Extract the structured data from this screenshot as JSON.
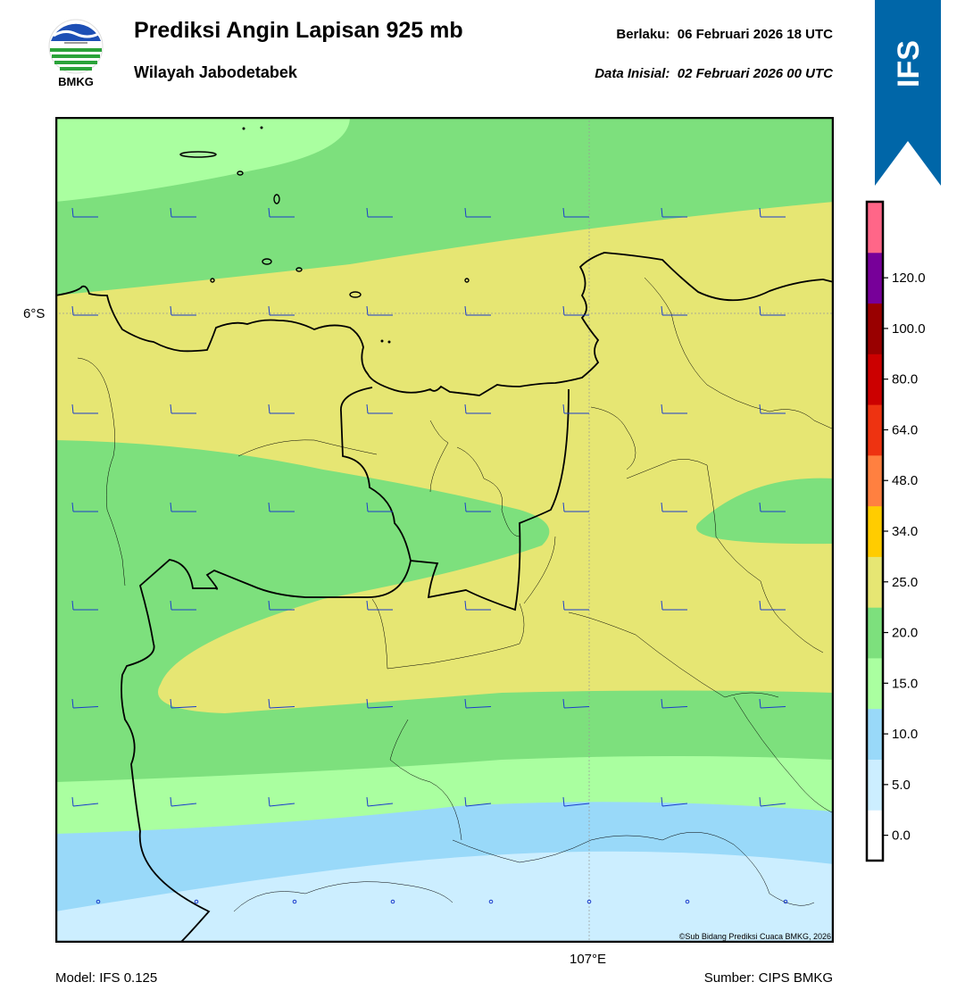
{
  "header": {
    "title": "Prediksi Angin Lapisan 925 mb",
    "subtitle": "Wilayah Jabodetabek",
    "valid_label": "Berlaku:",
    "valid_time": "06 Februari 2026 18 UTC",
    "init_label": "Data Inisial:",
    "init_time": "02 Februari 2026 00 UTC"
  },
  "logo": {
    "text": "BMKG",
    "icon": "bmkg-logo"
  },
  "ribbon": {
    "text": "IFS",
    "color": "#0066a8"
  },
  "map": {
    "lat_label": "6°S",
    "lon_label": "107°E",
    "copyright": "©Sub Bidang Prediksi Cuaca BMKG, 2026",
    "band_colors": {
      "0-5": "#cceeff",
      "5-10": "#99d9f9",
      "10-15": "#aaffa0",
      "15-20": "#7de07d",
      "20-25": "#e6e673"
    },
    "wind_barb_color": "#1a3ccc"
  },
  "colorbar": {
    "ticks": [
      "0.0",
      "5.0",
      "10.0",
      "15.0",
      "20.0",
      "25.0",
      "34.0",
      "48.0",
      "64.0",
      "80.0",
      "100.0",
      "120.0"
    ],
    "colors": [
      "#ffffff",
      "#cceeff",
      "#99d9f9",
      "#aaffa0",
      "#7de07d",
      "#e6e673",
      "#ffcc00",
      "#ff8040",
      "#ee3311",
      "#cc0000",
      "#990000",
      "#770099",
      "#ff6688"
    ]
  },
  "footer": {
    "model": "Model: IFS 0.125",
    "source": "Sumber: CIPS BMKG"
  }
}
